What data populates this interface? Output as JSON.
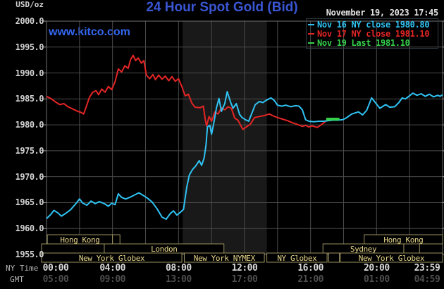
{
  "header": {
    "unit_label": "USD/oz",
    "title": "24 Hour Spot Gold (Bid)",
    "watermark": "www.kitco.com",
    "datetime": "November 19, 2023 17:45"
  },
  "legend": [
    {
      "label": "Nov 16 NY close 1980.80",
      "color": "#2fc2f2"
    },
    {
      "label": "Nov 17 NY close 1981.10",
      "color": "#e42525"
    },
    {
      "label": "Nov 19 Last 1981.10",
      "color": "#35d14b"
    }
  ],
  "axes": {
    "y_ticks": [
      "2000.0",
      "1995.0",
      "1990.0",
      "1985.0",
      "1980.0",
      "1975.0",
      "1970.0",
      "1965.0",
      "1960.0",
      "1955.0"
    ],
    "ny_label": "NY Time",
    "gmt_label": "GMT",
    "x_ny": [
      "00:00",
      "04:00",
      "08:00",
      "12:00",
      "16:00",
      "20:00",
      "23:59"
    ],
    "x_gmt": [
      "05:00",
      "09:00",
      "13:00",
      "17:00",
      "21:00",
      "01:00",
      "04:59"
    ]
  },
  "sessions": [
    {
      "row": 1,
      "label": "Hong Kong",
      "start": 0.05,
      "end": 4.0
    },
    {
      "row": 1,
      "label": "",
      "start": 4.0,
      "end": 4.45
    },
    {
      "row": 1,
      "label": "Hong Kong",
      "start": 19.25,
      "end": 24.0
    },
    {
      "row": 2,
      "label": "",
      "start": -0.3,
      "end": 3.5
    },
    {
      "row": 2,
      "label": "London",
      "start": 3.5,
      "end": 10.75
    },
    {
      "row": 2,
      "label": "Sydney",
      "start": 16.75,
      "end": 21.65
    },
    {
      "row": 2,
      "label": "",
      "start": 21.65,
      "end": 22.6
    },
    {
      "row": 3,
      "label": "New York Globex",
      "start": -0.3,
      "end": 8.2
    },
    {
      "row": 3,
      "label": "New York NYMEX",
      "start": 8.35,
      "end": 13.2
    },
    {
      "row": 3,
      "label": "NY Globex",
      "start": 13.35,
      "end": 17.0
    },
    {
      "row": 3,
      "label": "",
      "start": 17.1,
      "end": 17.75
    },
    {
      "row": 3,
      "label": "New York Globex",
      "start": 17.8,
      "end": 24.0
    }
  ],
  "colors": {
    "background": "#000000",
    "title_blue": "#3a56d4",
    "kitco_blue": "#3467f2",
    "grid": "#4b4b4b",
    "plot_border": "#6f6f6f",
    "tick": "#9a9a9a",
    "nymex_shade": "#191919",
    "session_border": "#9a9160",
    "session_text": "#e8d88a",
    "nov16_cyan": "#2fc2f2",
    "nov17_red": "#e42525",
    "nov19_green": "#35d14b"
  },
  "chart_data": {
    "type": "line",
    "title": "24 Hour Spot Gold (Bid)",
    "ylabel": "USD/oz",
    "y_range": [
      1955.0,
      2000.0
    ],
    "y_tick_step": 5.0,
    "x_range_hours_ny": [
      0,
      24
    ],
    "grid": true,
    "legend_position": "top-right",
    "nymex_highlight_hours": [
      8.25,
      13.35
    ],
    "series": [
      {
        "name": "Nov 16",
        "close_label": "NY close 1980.80",
        "color": "#2fc2f2",
        "width": 2,
        "points": [
          [
            0,
            1961.9
          ],
          [
            0.25,
            1962.7
          ],
          [
            0.45,
            1963.5
          ],
          [
            0.7,
            1963
          ],
          [
            0.9,
            1962.4
          ],
          [
            1.15,
            1962.9
          ],
          [
            1.45,
            1963.6
          ],
          [
            1.75,
            1964.7
          ],
          [
            2,
            1965.7
          ],
          [
            2.2,
            1964.9
          ],
          [
            2.45,
            1964.5
          ],
          [
            2.7,
            1965.3
          ],
          [
            2.95,
            1964.8
          ],
          [
            3.2,
            1965.2
          ],
          [
            3.5,
            1964.8
          ],
          [
            3.75,
            1964.3
          ],
          [
            3.95,
            1964.9
          ],
          [
            4.15,
            1964.6
          ],
          [
            4.35,
            1966.7
          ],
          [
            4.55,
            1966
          ],
          [
            4.8,
            1965.7
          ],
          [
            5.1,
            1966.1
          ],
          [
            5.35,
            1966.5
          ],
          [
            5.6,
            1966.9
          ],
          [
            5.85,
            1966.4
          ],
          [
            6.1,
            1965.9
          ],
          [
            6.4,
            1965.1
          ],
          [
            6.7,
            1963.8
          ],
          [
            7,
            1962.2
          ],
          [
            7.25,
            1961.8
          ],
          [
            7.5,
            1962.9
          ],
          [
            7.7,
            1963.4
          ],
          [
            7.9,
            1962.6
          ],
          [
            8.1,
            1963.1
          ],
          [
            8.3,
            1963.7
          ],
          [
            8.5,
            1968
          ],
          [
            8.65,
            1970.3
          ],
          [
            8.85,
            1971.4
          ],
          [
            9.05,
            1972.1
          ],
          [
            9.25,
            1973.1
          ],
          [
            9.4,
            1972.2
          ],
          [
            9.55,
            1973.6
          ],
          [
            9.67,
            1976.2
          ],
          [
            9.75,
            1979.6
          ],
          [
            9.9,
            1979.9
          ],
          [
            10,
            1978.2
          ],
          [
            10.15,
            1980.6
          ],
          [
            10.3,
            1983.3
          ],
          [
            10.45,
            1985.1
          ],
          [
            10.6,
            1982.6
          ],
          [
            10.8,
            1984.1
          ],
          [
            10.95,
            1986.4
          ],
          [
            11.15,
            1984.4
          ],
          [
            11.3,
            1983.2
          ],
          [
            11.5,
            1984.1
          ],
          [
            11.7,
            1982
          ],
          [
            11.85,
            1981.4
          ],
          [
            12.05,
            1981
          ],
          [
            12.25,
            1980.7
          ],
          [
            12.45,
            1982.3
          ],
          [
            12.65,
            1983.9
          ],
          [
            12.9,
            1984.5
          ],
          [
            13.1,
            1984.3
          ],
          [
            13.35,
            1984.8
          ],
          [
            13.6,
            1985.2
          ],
          [
            13.8,
            1984.7
          ],
          [
            14,
            1983.8
          ],
          [
            14.25,
            1983.6
          ],
          [
            14.5,
            1983.8
          ],
          [
            14.8,
            1983.5
          ],
          [
            15.1,
            1983.7
          ],
          [
            15.3,
            1983.6
          ],
          [
            15.5,
            1982.9
          ],
          [
            15.7,
            1981
          ],
          [
            15.9,
            1980.7
          ],
          [
            16.2,
            1980.6
          ],
          [
            16.5,
            1980.7
          ],
          [
            16.8,
            1980.7
          ],
          [
            17.05,
            1980.8
          ],
          [
            17.35,
            1980.9
          ],
          [
            17.65,
            1980.9
          ],
          [
            17.95,
            1981
          ],
          [
            18.15,
            1981.3
          ],
          [
            18.5,
            1982.1
          ],
          [
            18.9,
            1982.5
          ],
          [
            19.15,
            1981.9
          ],
          [
            19.4,
            1982.8
          ],
          [
            19.7,
            1985.2
          ],
          [
            20,
            1984
          ],
          [
            20.2,
            1983.2
          ],
          [
            20.55,
            1983.9
          ],
          [
            20.8,
            1983.4
          ],
          [
            21.1,
            1983.5
          ],
          [
            21.35,
            1984.3
          ],
          [
            21.55,
            1985.2
          ],
          [
            21.75,
            1985
          ],
          [
            21.95,
            1985.5
          ],
          [
            22.2,
            1986.1
          ],
          [
            22.45,
            1985.7
          ],
          [
            22.7,
            1986
          ],
          [
            22.95,
            1985.5
          ],
          [
            23.2,
            1985.9
          ],
          [
            23.45,
            1985.4
          ],
          [
            23.7,
            1985.7
          ],
          [
            23.85,
            1985.5
          ],
          [
            24,
            1985.8
          ]
        ]
      },
      {
        "name": "Nov 17",
        "close_label": "NY close 1981.10",
        "color": "#e42525",
        "width": 2,
        "points": [
          [
            0,
            1985.5
          ],
          [
            0.3,
            1985
          ],
          [
            0.55,
            1984.4
          ],
          [
            0.8,
            1983.9
          ],
          [
            1.05,
            1984.1
          ],
          [
            1.3,
            1983.5
          ],
          [
            1.5,
            1983.2
          ],
          [
            1.7,
            1982.9
          ],
          [
            1.9,
            1982.6
          ],
          [
            2.1,
            1982.4
          ],
          [
            2.25,
            1982.1
          ],
          [
            2.45,
            1983.9
          ],
          [
            2.6,
            1985.3
          ],
          [
            2.8,
            1986.3
          ],
          [
            3,
            1986.6
          ],
          [
            3.15,
            1985.8
          ],
          [
            3.35,
            1986.9
          ],
          [
            3.55,
            1986.3
          ],
          [
            3.75,
            1987.4
          ],
          [
            3.95,
            1986.8
          ],
          [
            4.15,
            1988.3
          ],
          [
            4.35,
            1990.8
          ],
          [
            4.55,
            1990.2
          ],
          [
            4.75,
            1991.4
          ],
          [
            4.95,
            1990.9
          ],
          [
            5.1,
            1992.6
          ],
          [
            5.25,
            1993.4
          ],
          [
            5.4,
            1992.4
          ],
          [
            5.55,
            1992.9
          ],
          [
            5.75,
            1991.9
          ],
          [
            5.9,
            1992.4
          ],
          [
            6.05,
            1989.6
          ],
          [
            6.25,
            1988.9
          ],
          [
            6.45,
            1989.7
          ],
          [
            6.6,
            1988.7
          ],
          [
            6.8,
            1989.6
          ],
          [
            7,
            1988.8
          ],
          [
            7.2,
            1989.4
          ],
          [
            7.4,
            1988.5
          ],
          [
            7.6,
            1989.3
          ],
          [
            7.8,
            1988.4
          ],
          [
            8,
            1988.9
          ],
          [
            8.2,
            1987.4
          ],
          [
            8.4,
            1985.6
          ],
          [
            8.6,
            1985.9
          ],
          [
            8.8,
            1984.2
          ],
          [
            9,
            1983.4
          ],
          [
            9.3,
            1983.3
          ],
          [
            9.5,
            1983.6
          ],
          [
            9.62,
            1981
          ],
          [
            9.7,
            1979.8
          ],
          [
            9.85,
            1981.6
          ],
          [
            10,
            1980.7
          ],
          [
            10.2,
            1982.5
          ],
          [
            10.4,
            1982.1
          ],
          [
            10.6,
            1983.3
          ],
          [
            10.8,
            1982.9
          ],
          [
            11,
            1983.5
          ],
          [
            11.2,
            1983.2
          ],
          [
            11.4,
            1981.3
          ],
          [
            11.6,
            1980.9
          ],
          [
            11.9,
            1979.1
          ],
          [
            12.1,
            1979.6
          ],
          [
            12.35,
            1980.1
          ],
          [
            12.6,
            1981.4
          ],
          [
            12.9,
            1981.6
          ],
          [
            13.2,
            1981.8
          ],
          [
            13.5,
            1982.1
          ],
          [
            13.75,
            1981.7
          ],
          [
            14,
            1981.4
          ],
          [
            14.3,
            1981.1
          ],
          [
            14.6,
            1980.8
          ],
          [
            14.9,
            1980.4
          ],
          [
            15.2,
            1980.1
          ],
          [
            15.5,
            1979.7
          ],
          [
            15.7,
            1979.9
          ],
          [
            15.9,
            1979.6
          ],
          [
            16.1,
            1979.8
          ],
          [
            16.4,
            1979.5
          ],
          [
            16.6,
            1979.9
          ],
          [
            16.8,
            1980.4
          ],
          [
            17,
            1980.9
          ],
          [
            17.2,
            1981.1
          ],
          [
            17.5,
            1981.1
          ],
          [
            17.75,
            1981.1
          ]
        ]
      },
      {
        "name": "Nov 19",
        "close_label": "Last 1981.10",
        "color": "#35d14b",
        "width": 4,
        "points": [
          [
            16.95,
            1981.1
          ],
          [
            17.75,
            1981.1
          ]
        ]
      }
    ]
  }
}
